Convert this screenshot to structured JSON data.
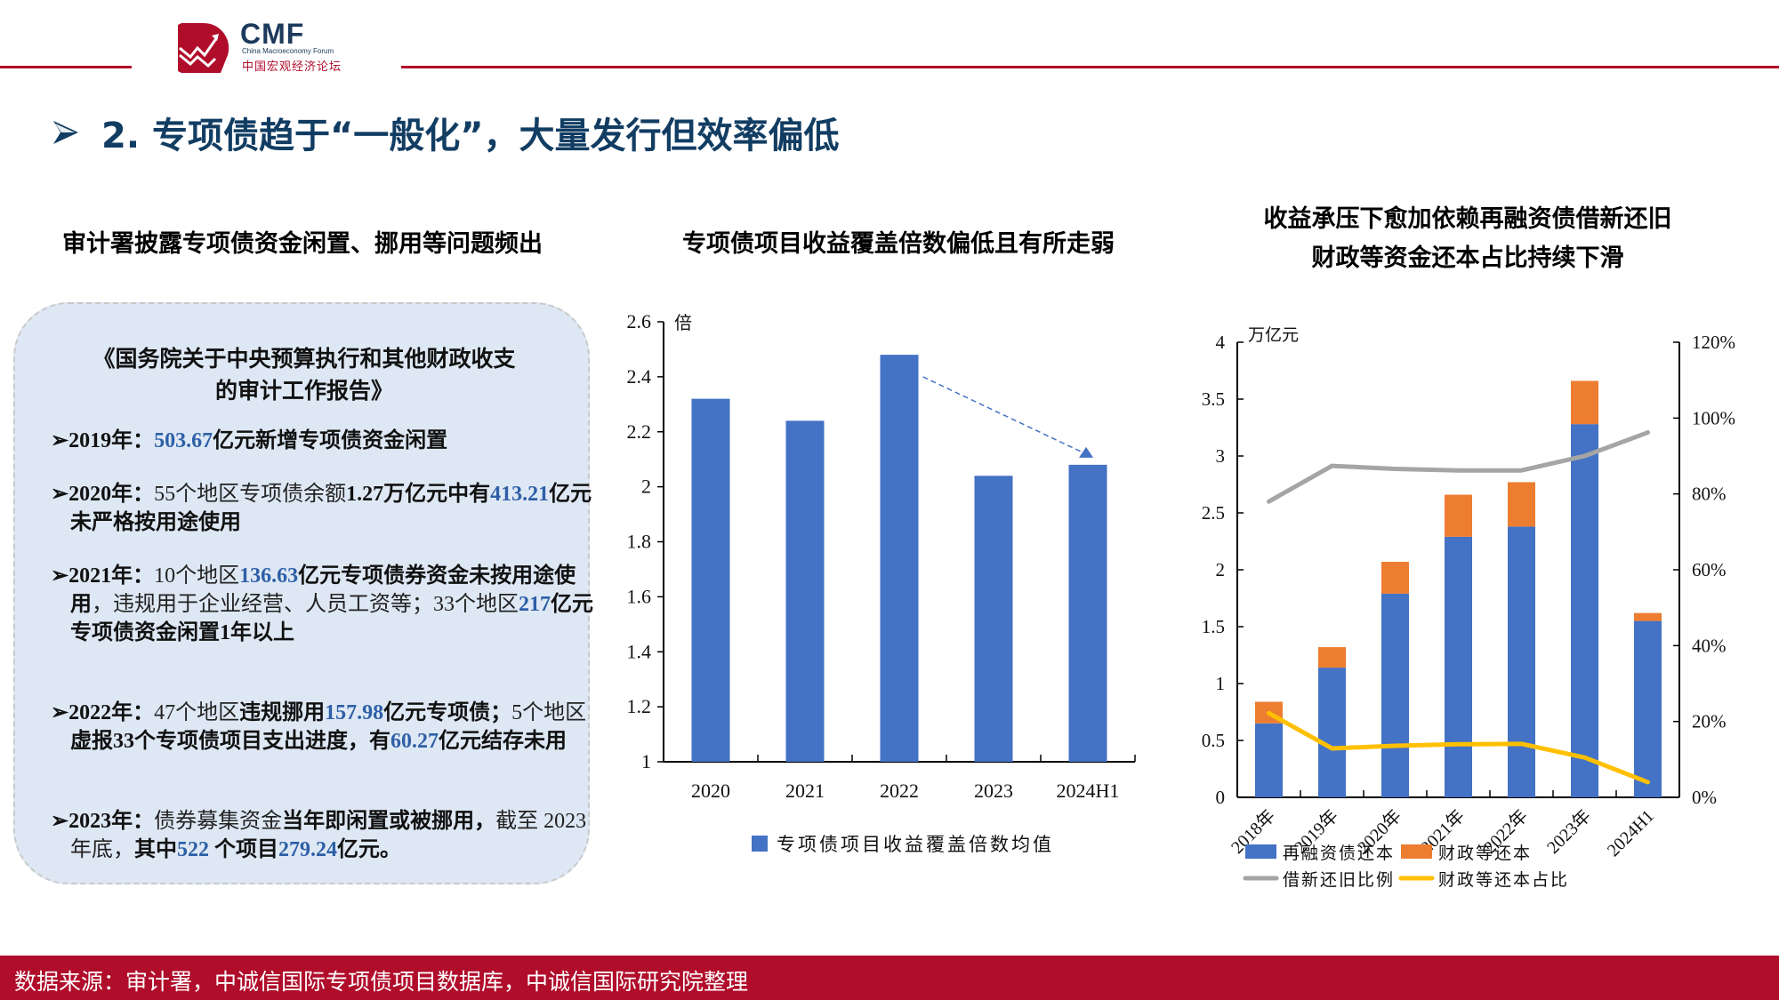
{
  "header": {
    "logo": {
      "abbr": "CMF",
      "english_name": "China Macroeconomy Forum",
      "chinese_name": "中国宏观经济论坛"
    },
    "accent_color": "#B00D2B"
  },
  "page_title": {
    "bullet_icon": "arrow-bullet-icon",
    "text": "2. 专项债趋于“一般化”，大量发行但效率偏低",
    "color": "#123D63"
  },
  "left_panel": {
    "subtitle": "审计署披露专项债资金闲置、挪用等问题频出",
    "box_title_line1": "《国务院关于中央预算执行和其他财政收支",
    "box_title_line2": "的审计工作报告》",
    "items": [
      {
        "year": "2019年：",
        "segments": [
          {
            "t": "503.67",
            "s": "n"
          },
          {
            "t": "亿元新增专项债资金闲置",
            "s": "b"
          }
        ]
      },
      {
        "year": "2020年：",
        "segments": [
          {
            "t": "55个地区专项债余额",
            "s": ""
          },
          {
            "t": "1.27万亿元中有",
            "s": "b"
          },
          {
            "t": "413.21",
            "s": "n"
          },
          {
            "t": "亿元未严格按用途使用",
            "s": "b"
          }
        ]
      },
      {
        "year": "2021年：",
        "segments": [
          {
            "t": "10个地区",
            "s": ""
          },
          {
            "t": "136.63",
            "s": "n"
          },
          {
            "t": "亿元专项债券资金未按用途使用",
            "s": "b"
          },
          {
            "t": "，违规用于企业经营、人员工资等；33个地区",
            "s": ""
          },
          {
            "t": "217",
            "s": "n"
          },
          {
            "t": "亿元专项债资金闲置1年以上",
            "s": "b"
          }
        ]
      },
      {
        "year": "2022年：",
        "segments": [
          {
            "t": "47个地区",
            "s": ""
          },
          {
            "t": "违规挪用",
            "s": "b"
          },
          {
            "t": "157.98",
            "s": "n"
          },
          {
            "t": "亿元专项债；",
            "s": "b"
          },
          {
            "t": "5个地区",
            "s": ""
          },
          {
            "t": "虚报33个专项债项目支出进度，有",
            "s": "b"
          },
          {
            "t": "60.27",
            "s": "n"
          },
          {
            "t": "亿元结存未用",
            "s": "b"
          }
        ]
      },
      {
        "year": "2023年：",
        "segments": [
          {
            "t": "债券募集资金",
            "s": ""
          },
          {
            "t": "当年即闲置或被挪用，",
            "s": "b"
          },
          {
            "t": "截至 2023 年底，",
            "s": ""
          },
          {
            "t": "其中",
            "s": "b"
          },
          {
            "t": "522",
            "s": "n"
          },
          {
            "t": " 个项目",
            "s": "b"
          },
          {
            "t": "279.24",
            "s": "n"
          },
          {
            "t": "亿元。",
            "s": "b"
          }
        ]
      }
    ]
  },
  "middle_panel": {
    "subtitle": "专项债项目收益覆盖倍数偏低且有所走弱"
  },
  "right_panel": {
    "subtitle_line1": "收益承压下愈加依赖再融资债借新还旧",
    "subtitle_line2": "财政等资金还本占比持续下滑"
  },
  "chart_data": [
    {
      "type": "bar",
      "title": "专项债项目收益覆盖倍数偏低且有所走弱",
      "categories": [
        "2020",
        "2021",
        "2022",
        "2023",
        "2024H1"
      ],
      "series": [
        {
          "name": "专项债项目收益覆盖倍数均值",
          "values": [
            2.32,
            2.24,
            2.48,
            2.04,
            2.08
          ],
          "color": "#4472C4"
        }
      ],
      "ylabel": "倍",
      "ylim": [
        1,
        2.6
      ],
      "yticks": [
        "1",
        "1.2",
        "1.4",
        "1.6",
        "1.8",
        "2",
        "2.2",
        "2.4",
        "2.6"
      ],
      "grid": false,
      "legend_position": "bottom",
      "annotations": [
        {
          "type": "dashed-arrow",
          "from": "2022",
          "to": "2024H1",
          "color": "#4472C4"
        }
      ]
    },
    {
      "type": "bar+line",
      "title": "收益承压下愈加依赖再融资债借新还旧 财政等资金还本占比持续下滑",
      "categories": [
        "2018年",
        "2019年",
        "2020年",
        "2021年",
        "2022年",
        "2023年",
        "2024H1"
      ],
      "stacked_bars": [
        {
          "name": "再融资债还本",
          "values": [
            0.65,
            1.14,
            1.79,
            2.29,
            2.38,
            3.28,
            1.55
          ],
          "color": "#4472C4"
        },
        {
          "name": "财政等还本",
          "values": [
            0.19,
            0.18,
            0.28,
            0.37,
            0.39,
            0.38,
            0.07
          ],
          "color": "#ED7D31"
        }
      ],
      "lines_right_axis": [
        {
          "name": "借新还旧比例",
          "values": [
            78,
            87.4,
            86.6,
            86.2,
            86.2,
            90,
            96.2
          ],
          "color": "#A5A5A5"
        },
        {
          "name": "财政等还本占比",
          "values": [
            22.2,
            12.9,
            13.6,
            14,
            14.1,
            10.5,
            4
          ],
          "color": "#FFC000"
        }
      ],
      "ylabel_left": "万亿元",
      "ylim_left": [
        0,
        4
      ],
      "yticks_left": [
        "0",
        "0.5",
        "1",
        "1.5",
        "2",
        "2.5",
        "3",
        "3.5",
        "4"
      ],
      "ylim_right": [
        0,
        120
      ],
      "yticks_right": [
        "0%",
        "20%",
        "40%",
        "60%",
        "80%",
        "100%",
        "120%"
      ],
      "grid": false,
      "legend_position": "bottom"
    }
  ],
  "footer": {
    "source": "数据来源：审计署，中诚信国际专项债项目数据库，中诚信国际研究院整理"
  }
}
